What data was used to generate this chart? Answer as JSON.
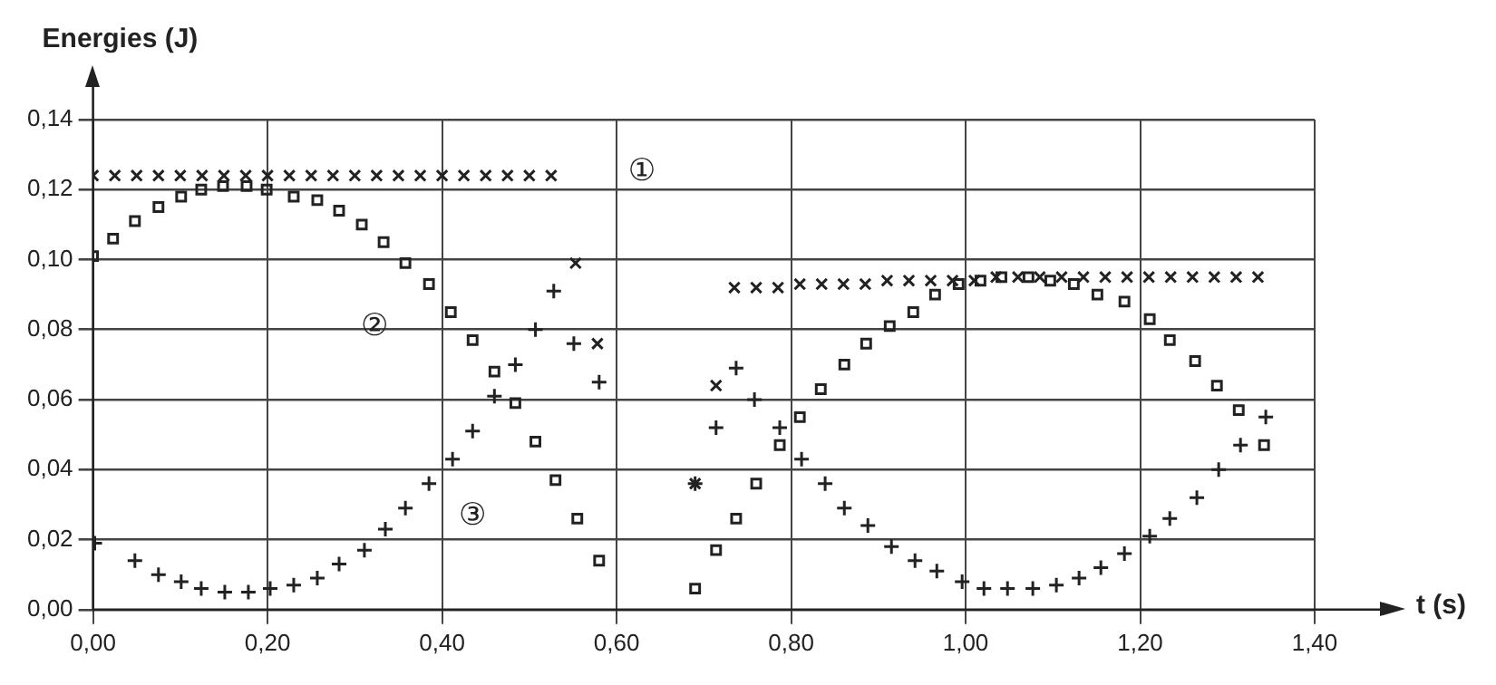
{
  "chart_data": {
    "type": "scatter",
    "xlabel": "t (s)",
    "ylabel": "Energies (J)",
    "xlim": [
      0,
      1.4
    ],
    "ylim": [
      0,
      0.14
    ],
    "xticks": [
      {
        "value": 0,
        "label": "0,00"
      },
      {
        "value": 0.2,
        "label": "0,20"
      },
      {
        "value": 0.4,
        "label": "0,40"
      },
      {
        "value": 0.6,
        "label": "0,60"
      },
      {
        "value": 0.8,
        "label": "0,80"
      },
      {
        "value": 1.0,
        "label": "1,00"
      },
      {
        "value": 1.2,
        "label": "1,20"
      },
      {
        "value": 1.4,
        "label": "1,40"
      }
    ],
    "yticks": [
      {
        "value": 0,
        "label": "0,00"
      },
      {
        "value": 0.02,
        "label": "0,02"
      },
      {
        "value": 0.04,
        "label": "0,04"
      },
      {
        "value": 0.06,
        "label": "0,06"
      },
      {
        "value": 0.08,
        "label": "0,08"
      },
      {
        "value": 0.1,
        "label": "0,10"
      },
      {
        "value": 0.12,
        "label": "0,12"
      },
      {
        "value": 0.14,
        "label": "0,14"
      }
    ],
    "grid": true,
    "series": [
      {
        "name": "①",
        "color": "#222222",
        "marker": "cross",
        "x": [
          0,
          0.025,
          0.05,
          0.075,
          0.1,
          0.125,
          0.15,
          0.175,
          0.2,
          0.225,
          0.25,
          0.275,
          0.3,
          0.325,
          0.35,
          0.375,
          0.4,
          0.425,
          0.45,
          0.475,
          0.5,
          0.525,
          0.553,
          0.578,
          0.69,
          0.714,
          0.735,
          0.76,
          0.785,
          0.81,
          0.835,
          0.86,
          0.885,
          0.91,
          0.935,
          0.96,
          0.985,
          1.01,
          1.035,
          1.06,
          1.085,
          1.11,
          1.135,
          1.16,
          1.185,
          1.21,
          1.235,
          1.26,
          1.285,
          1.31,
          1.335
        ],
        "values": [
          0.124,
          0.124,
          0.124,
          0.124,
          0.124,
          0.124,
          0.124,
          0.124,
          0.124,
          0.124,
          0.124,
          0.124,
          0.124,
          0.124,
          0.124,
          0.124,
          0.124,
          0.124,
          0.124,
          0.124,
          0.124,
          0.124,
          0.099,
          0.076,
          0.036,
          0.064,
          0.092,
          0.092,
          0.092,
          0.093,
          0.093,
          0.093,
          0.093,
          0.094,
          0.094,
          0.094,
          0.094,
          0.094,
          0.095,
          0.095,
          0.095,
          0.095,
          0.095,
          0.095,
          0.095,
          0.095,
          0.095,
          0.095,
          0.095,
          0.095,
          0.095
        ]
      },
      {
        "name": "②",
        "color": "#222222",
        "marker": "square",
        "x": [
          0,
          0.023,
          0.048,
          0.075,
          0.101,
          0.124,
          0.149,
          0.176,
          0.199,
          0.23,
          0.257,
          0.282,
          0.308,
          0.333,
          0.358,
          0.385,
          0.41,
          0.435,
          0.46,
          0.484,
          0.507,
          0.53,
          0.555,
          0.58,
          0.69,
          0.714,
          0.737,
          0.76,
          0.787,
          0.81,
          0.834,
          0.861,
          0.886,
          0.913,
          0.94,
          0.965,
          0.992,
          1.017,
          1.041,
          1.072,
          1.097,
          1.124,
          1.151,
          1.182,
          1.211,
          1.234,
          1.263,
          1.288,
          1.313,
          1.342
        ],
        "values": [
          0.101,
          0.106,
          0.111,
          0.115,
          0.118,
          0.12,
          0.121,
          0.121,
          0.12,
          0.118,
          0.117,
          0.114,
          0.11,
          0.105,
          0.099,
          0.093,
          0.085,
          0.077,
          0.068,
          0.059,
          0.048,
          0.037,
          0.026,
          0.014,
          0.006,
          0.017,
          0.026,
          0.036,
          0.047,
          0.055,
          0.063,
          0.07,
          0.076,
          0.081,
          0.085,
          0.09,
          0.093,
          0.094,
          0.095,
          0.095,
          0.094,
          0.093,
          0.09,
          0.088,
          0.083,
          0.077,
          0.071,
          0.064,
          0.057,
          0.047
        ]
      },
      {
        "name": "③",
        "color": "#222222",
        "marker": "plus",
        "x": [
          0.002,
          0.048,
          0.075,
          0.101,
          0.124,
          0.151,
          0.178,
          0.203,
          0.23,
          0.257,
          0.282,
          0.311,
          0.335,
          0.358,
          0.385,
          0.412,
          0.435,
          0.46,
          0.484,
          0.507,
          0.528,
          0.551,
          0.58,
          0.69,
          0.714,
          0.737,
          0.758,
          0.787,
          0.812,
          0.839,
          0.861,
          0.888,
          0.915,
          0.942,
          0.967,
          0.996,
          1.021,
          1.048,
          1.077,
          1.104,
          1.13,
          1.155,
          1.182,
          1.211,
          1.234,
          1.265,
          1.29,
          1.315,
          1.344
        ],
        "values": [
          0.019,
          0.014,
          0.01,
          0.008,
          0.006,
          0.005,
          0.005,
          0.006,
          0.007,
          0.009,
          0.013,
          0.017,
          0.023,
          0.029,
          0.036,
          0.043,
          0.051,
          0.061,
          0.07,
          0.08,
          0.091,
          0.076,
          0.065,
          0.036,
          0.052,
          0.069,
          0.06,
          0.052,
          0.043,
          0.036,
          0.029,
          0.024,
          0.018,
          0.014,
          0.011,
          0.008,
          0.006,
          0.006,
          0.006,
          0.007,
          0.009,
          0.012,
          0.016,
          0.021,
          0.026,
          0.032,
          0.04,
          0.047,
          0.055
        ]
      }
    ],
    "legend": false
  }
}
